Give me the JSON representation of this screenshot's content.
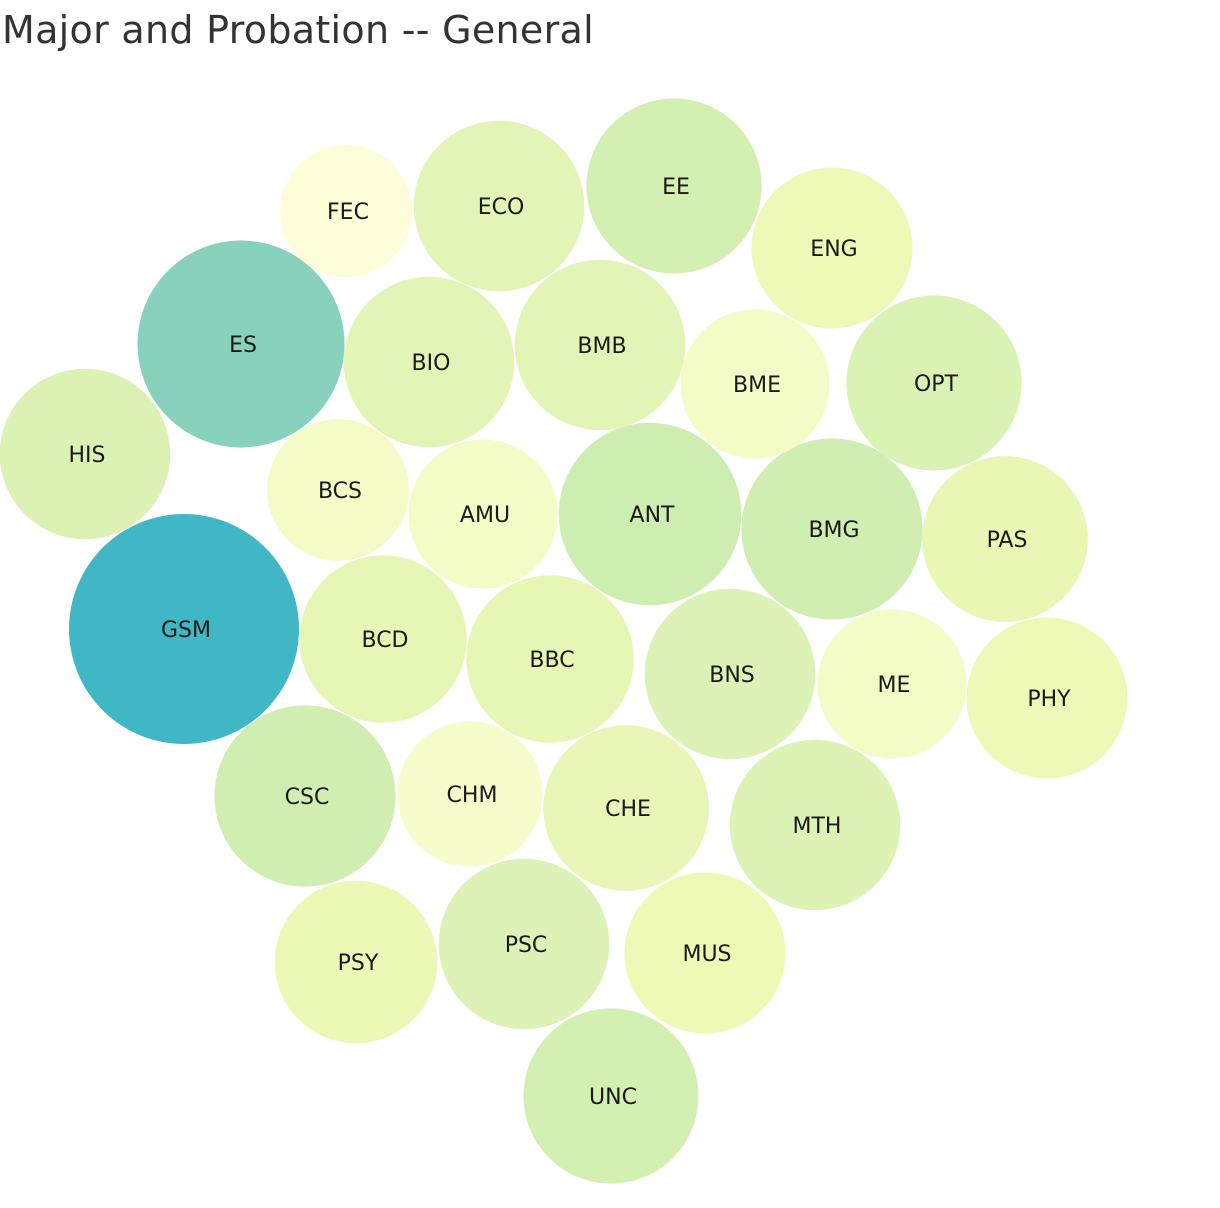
{
  "title": "Major and Probation -- General",
  "chart_data": {
    "type": "bubble",
    "title": "Major and Probation -- General",
    "legend": "none",
    "color_scale": {
      "low": "#ffffd9",
      "high": "#41b6c4"
    },
    "bubbles": [
      {
        "label": "GSM",
        "value": 100,
        "color": "#41b6c4"
      },
      {
        "label": "ES",
        "value": 81,
        "color": "#88d1bc"
      },
      {
        "label": "ANT",
        "value": 63,
        "color": "#cdedb1"
      },
      {
        "label": "CSC",
        "value": 62,
        "color": "#d0eeb2"
      },
      {
        "label": "BMG",
        "value": 62,
        "color": "#d0eeb2"
      },
      {
        "label": "OPT",
        "value": 58,
        "color": "#daf2b3"
      },
      {
        "label": "EE",
        "value": 58,
        "color": "#d3efb1"
      },
      {
        "label": "UNC",
        "value": 58,
        "color": "#d3efb1"
      },
      {
        "label": "MTH",
        "value": 55,
        "color": "#ddf3b5"
      },
      {
        "label": "BNS",
        "value": 55,
        "color": "#ddf2b6"
      },
      {
        "label": "ECO",
        "value": 55,
        "color": "#e2f5b6"
      },
      {
        "label": "BMB",
        "value": 55,
        "color": "#e2f5b6"
      },
      {
        "label": "BIO",
        "value": 55,
        "color": "#e2f5b6"
      },
      {
        "label": "PSC",
        "value": 55,
        "color": "#ddf2b6"
      },
      {
        "label": "HIS",
        "value": 55,
        "color": "#dcf2b4"
      },
      {
        "label": "BBC",
        "value": 53,
        "color": "#e6f7b5"
      },
      {
        "label": "BCD",
        "value": 53,
        "color": "#e6f7b5"
      },
      {
        "label": "CHE",
        "value": 52,
        "color": "#e8f7b8"
      },
      {
        "label": "PAS",
        "value": 52,
        "color": "#e8f7b3"
      },
      {
        "label": "ENG",
        "value": 49,
        "color": "#eef9b7"
      },
      {
        "label": "PHY",
        "value": 49,
        "color": "#eef9b7"
      },
      {
        "label": "MUS",
        "value": 49,
        "color": "#eef9b6"
      },
      {
        "label": "PSY",
        "value": 50,
        "color": "#ecf8b5"
      },
      {
        "label": "BME",
        "value": 42,
        "color": "#f3fbc6"
      },
      {
        "label": "AMU",
        "value": 42,
        "color": "#f3fbc6"
      },
      {
        "label": "ME",
        "value": 42,
        "color": "#f3fbc6"
      },
      {
        "label": "CHM",
        "value": 40,
        "color": "#f6fccc"
      },
      {
        "label": "BCS",
        "value": 38,
        "color": "#f4fbc7"
      },
      {
        "label": "FEC",
        "value": 33,
        "color": "#fdfed9"
      }
    ]
  }
}
